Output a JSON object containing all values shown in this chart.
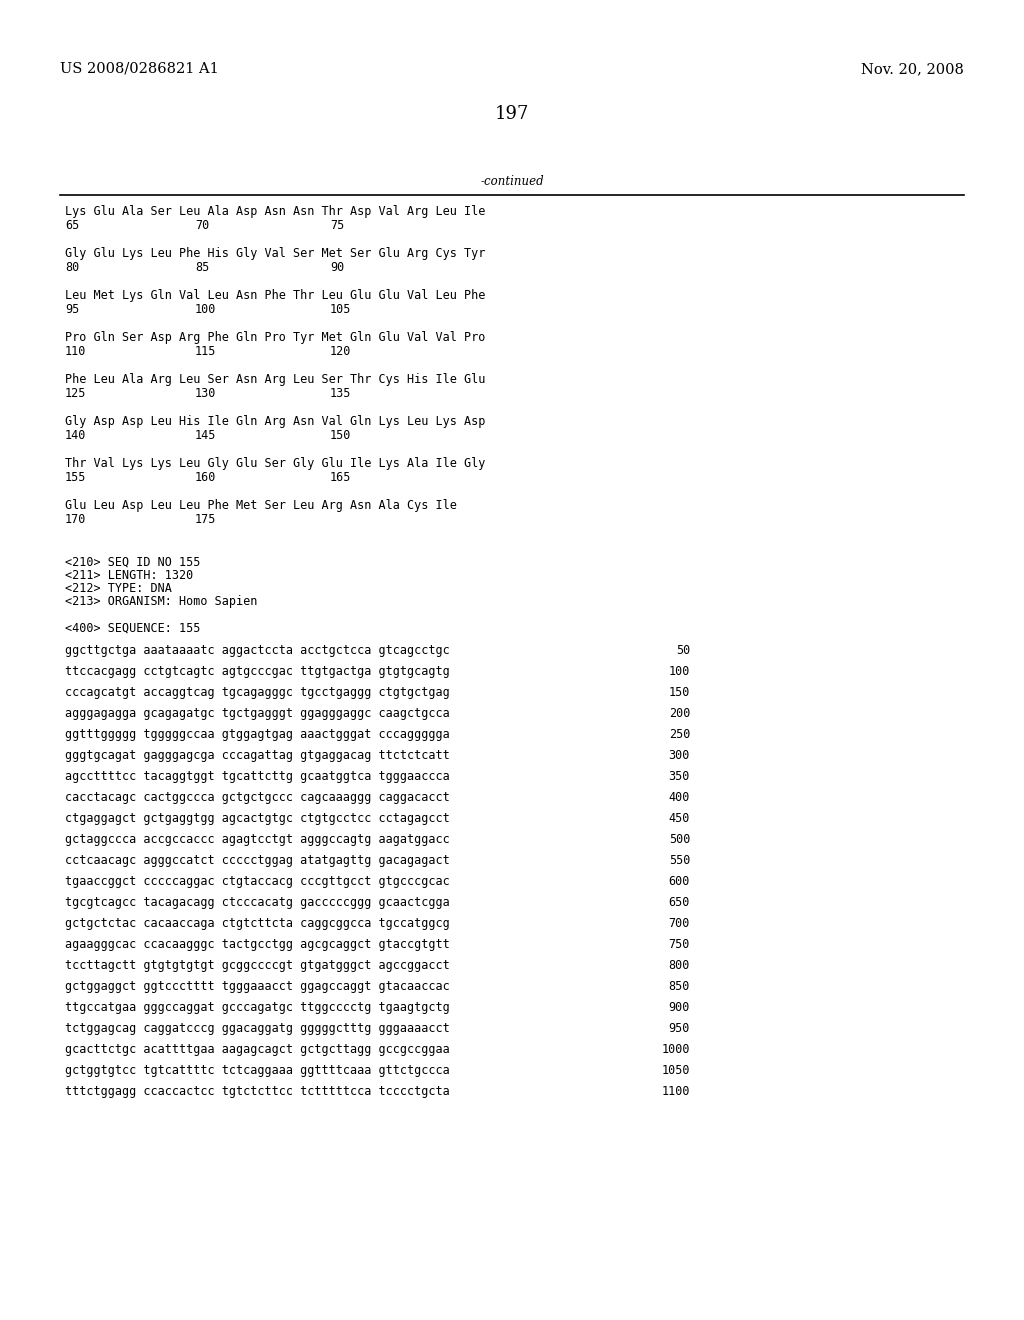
{
  "header_left": "US 2008/0286821 A1",
  "header_right": "Nov. 20, 2008",
  "page_number": "197",
  "continued_label": "-continued",
  "background_color": "#ffffff",
  "text_color": "#000000",
  "font_size_header": 10.5,
  "font_size_body": 8.5,
  "font_size_page": 13,
  "amino_acid_lines": [
    [
      "Lys Glu Ala Ser Leu Ala Asp Asn Asn Thr Asp Val Arg Leu Ile",
      "65",
      "70",
      "75"
    ],
    [
      "Gly Glu Lys Leu Phe His Gly Val Ser Met Ser Glu Arg Cys Tyr",
      "80",
      "85",
      "90"
    ],
    [
      "Leu Met Lys Gln Val Leu Asn Phe Thr Leu Glu Glu Val Leu Phe",
      "95",
      "100",
      "105"
    ],
    [
      "Pro Gln Ser Asp Arg Phe Gln Pro Tyr Met Gln Glu Val Val Pro",
      "110",
      "115",
      "120"
    ],
    [
      "Phe Leu Ala Arg Leu Ser Asn Arg Leu Ser Thr Cys His Ile Glu",
      "125",
      "130",
      "135"
    ],
    [
      "Gly Asp Asp Leu His Ile Gln Arg Asn Val Gln Lys Leu Lys Asp",
      "140",
      "145",
      "150"
    ],
    [
      "Thr Val Lys Lys Leu Gly Glu Ser Gly Glu Ile Lys Ala Ile Gly",
      "155",
      "160",
      "165"
    ],
    [
      "Glu Leu Asp Leu Leu Phe Met Ser Leu Arg Asn Ala Cys Ile",
      "170",
      "175",
      ""
    ]
  ],
  "seq_info_lines": [
    "<210> SEQ ID NO 155",
    "<211> LENGTH: 1320",
    "<212> TYPE: DNA",
    "<213> ORGANISM: Homo Sapien"
  ],
  "seq400_label": "<400> SEQUENCE: 155",
  "dna_lines": [
    [
      "ggcttgctga aaataaaatc aggactccta acctgctcca gtcagcctgc",
      "50"
    ],
    [
      "ttccacgagg cctgtcagtc agtgcccgac ttgtgactga gtgtgcagtg",
      "100"
    ],
    [
      "cccagcatgt accaggtcag tgcagagggc tgcctgaggg ctgtgctgag",
      "150"
    ],
    [
      "agggagagga gcagagatgc tgctgagggt ggagggaggc caagctgcca",
      "200"
    ],
    [
      "ggtttggggg tgggggccaa gtggagtgag aaactgggat cccaggggga",
      "250"
    ],
    [
      "gggtgcagat gagggagcga cccagattag gtgaggacag ttctctcatt",
      "300"
    ],
    [
      "agccttttcc tacaggtggt tgcattcttg gcaatggtca tgggaaccca",
      "350"
    ],
    [
      "cacctacagc cactggccca gctgctgccc cagcaaaggg caggacacct",
      "400"
    ],
    [
      "ctgaggagct gctgaggtgg agcactgtgc ctgtgcctcc cctagagcct",
      "450"
    ],
    [
      "gctaggccca accgccaccc agagtcctgt agggccagtg aagatggacc",
      "500"
    ],
    [
      "cctcaacagc agggccatct ccccctggag atatgagttg gacagagact",
      "550"
    ],
    [
      "tgaaccggct cccccaggac ctgtaccacg cccgttgcct gtgcccgcac",
      "600"
    ],
    [
      "tgcgtcagcc tacagacagg ctcccacatg gacccccggg gcaactcgga",
      "650"
    ],
    [
      "gctgctctac cacaaccaga ctgtcttcta caggcggcca tgccatggcg",
      "700"
    ],
    [
      "agaagggcac ccacaagggc tactgcctgg agcgcaggct gtaccgtgtt",
      "750"
    ],
    [
      "tccttagctt gtgtgtgtgt gcggccccgt gtgatgggct agccggacct",
      "800"
    ],
    [
      "gctggaggct ggtccctttt tgggaaacct ggagccaggt gtacaaccac",
      "850"
    ],
    [
      "ttgccatgaa gggccaggat gcccagatgc ttggcccctg tgaagtgctg",
      "900"
    ],
    [
      "tctggagcag caggatcccg ggacaggatg gggggctttg gggaaaacct",
      "950"
    ],
    [
      "gcacttctgc acattttgaa aagagcagct gctgcttagg gccgccggaa",
      "1000"
    ],
    [
      "gctggtgtcc tgtcattttc tctcaggaaa ggttttcaaa gttctgccca",
      "1050"
    ],
    [
      "tttctggagg ccaccactcc tgtctcttcc tctttttcca tcccctgcta",
      "1100"
    ]
  ]
}
